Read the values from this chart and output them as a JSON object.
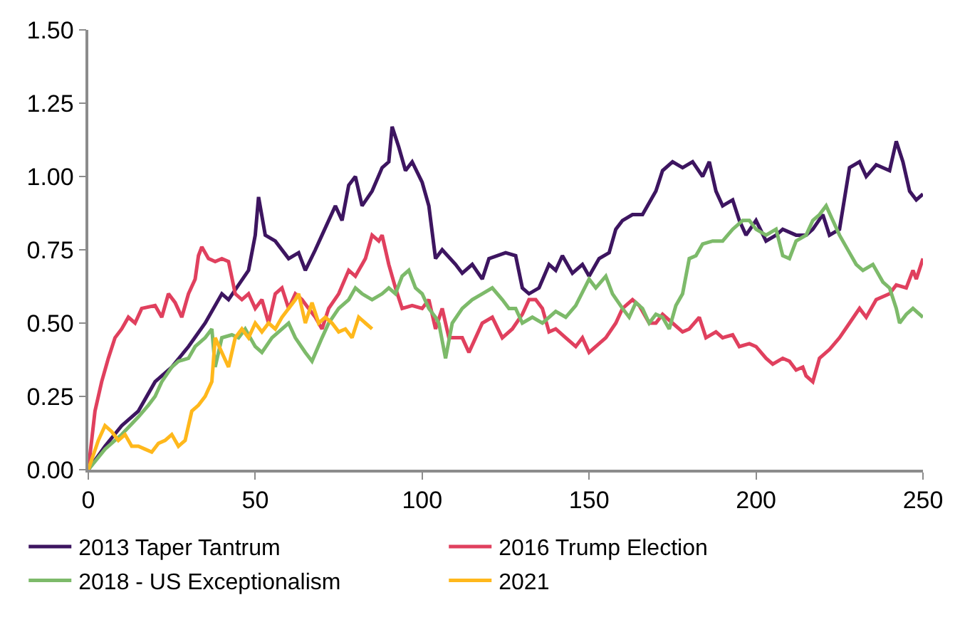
{
  "chart_data": {
    "type": "line",
    "xlim": [
      0,
      250
    ],
    "xticks": [
      0,
      50,
      100,
      150,
      200,
      250
    ],
    "ylim": [
      0,
      1.5
    ],
    "yticks": [
      {
        "value": 0,
        "label": "0.00"
      },
      {
        "value": 0.25,
        "label": "0.25"
      },
      {
        "value": 0.5,
        "label": "0.50"
      },
      {
        "value": 0.75,
        "label": "0.75"
      },
      {
        "value": 1,
        "label": "1.00"
      },
      {
        "value": 1.25,
        "label": "1.25"
      },
      {
        "value": 1.5,
        "label": "1.50"
      }
    ],
    "legend": "bottom",
    "marker": "none",
    "line_style": "solid",
    "series": [
      {
        "name": "2013 Taper Tantrum",
        "color": "#3d1560",
        "x": [
          0,
          5,
          10,
          15,
          20,
          25,
          30,
          35,
          40,
          42,
          45,
          48,
          50,
          51,
          53,
          56,
          60,
          63,
          65,
          68,
          70,
          74,
          76,
          78,
          80,
          82,
          85,
          88,
          90,
          91,
          93,
          95,
          97,
          100,
          102,
          104,
          106,
          110,
          112,
          115,
          118,
          120,
          125,
          128,
          130,
          132,
          135,
          138,
          140,
          142,
          145,
          148,
          150,
          153,
          156,
          158,
          160,
          163,
          166,
          170,
          172,
          175,
          178,
          181,
          184,
          186,
          188,
          190,
          193,
          195,
          197,
          200,
          203,
          206,
          208,
          212,
          215,
          217,
          220,
          222,
          225,
          228,
          231,
          233,
          236,
          240,
          242,
          244,
          246,
          248,
          250
        ],
        "values": [
          0,
          0.08,
          0.15,
          0.2,
          0.3,
          0.35,
          0.42,
          0.5,
          0.6,
          0.58,
          0.63,
          0.68,
          0.8,
          0.93,
          0.8,
          0.78,
          0.72,
          0.74,
          0.68,
          0.75,
          0.8,
          0.9,
          0.85,
          0.97,
          1.0,
          0.9,
          0.95,
          1.03,
          1.05,
          1.17,
          1.1,
          1.02,
          1.05,
          0.98,
          0.9,
          0.72,
          0.75,
          0.7,
          0.67,
          0.7,
          0.65,
          0.72,
          0.74,
          0.73,
          0.62,
          0.6,
          0.62,
          0.7,
          0.68,
          0.73,
          0.67,
          0.7,
          0.66,
          0.72,
          0.74,
          0.82,
          0.85,
          0.87,
          0.87,
          0.95,
          1.02,
          1.05,
          1.03,
          1.05,
          1.0,
          1.05,
          0.95,
          0.9,
          0.92,
          0.85,
          0.8,
          0.85,
          0.78,
          0.8,
          0.82,
          0.8,
          0.8,
          0.82,
          0.87,
          0.8,
          0.82,
          1.03,
          1.05,
          1.0,
          1.04,
          1.02,
          1.12,
          1.05,
          0.95,
          0.92,
          0.94
        ]
      },
      {
        "name": "2016 Trump Election",
        "color": "#e0405e",
        "x": [
          0,
          2,
          4,
          6,
          8,
          10,
          12,
          14,
          16,
          20,
          22,
          24,
          26,
          28,
          30,
          32,
          33,
          34,
          36,
          38,
          40,
          42,
          44,
          46,
          48,
          50,
          52,
          54,
          56,
          58,
          60,
          62,
          64,
          66,
          68,
          70,
          72,
          75,
          78,
          80,
          83,
          85,
          87,
          88,
          90,
          92,
          94,
          97,
          100,
          102,
          104,
          106,
          108,
          112,
          114,
          116,
          118,
          121,
          124,
          127,
          130,
          132,
          134,
          136,
          138,
          140,
          143,
          146,
          148,
          150,
          152,
          155,
          158,
          160,
          163,
          165,
          168,
          170,
          172,
          175,
          178,
          180,
          183,
          185,
          188,
          190,
          193,
          195,
          198,
          200,
          203,
          205,
          208,
          210,
          212,
          214,
          215,
          217,
          219,
          222,
          225,
          228,
          231,
          233,
          236,
          240,
          242,
          245,
          247,
          248,
          250
        ],
        "values": [
          0,
          0.2,
          0.3,
          0.38,
          0.45,
          0.48,
          0.52,
          0.5,
          0.55,
          0.56,
          0.52,
          0.6,
          0.57,
          0.52,
          0.6,
          0.65,
          0.73,
          0.76,
          0.72,
          0.71,
          0.72,
          0.71,
          0.6,
          0.58,
          0.6,
          0.55,
          0.58,
          0.5,
          0.6,
          0.62,
          0.55,
          0.6,
          0.58,
          0.55,
          0.52,
          0.48,
          0.55,
          0.6,
          0.68,
          0.66,
          0.72,
          0.8,
          0.78,
          0.8,
          0.7,
          0.62,
          0.55,
          0.56,
          0.55,
          0.58,
          0.48,
          0.55,
          0.45,
          0.45,
          0.4,
          0.45,
          0.5,
          0.52,
          0.45,
          0.48,
          0.53,
          0.58,
          0.58,
          0.55,
          0.47,
          0.48,
          0.45,
          0.42,
          0.45,
          0.4,
          0.42,
          0.45,
          0.5,
          0.55,
          0.58,
          0.56,
          0.5,
          0.5,
          0.53,
          0.5,
          0.47,
          0.48,
          0.52,
          0.45,
          0.47,
          0.45,
          0.46,
          0.42,
          0.43,
          0.42,
          0.38,
          0.36,
          0.38,
          0.37,
          0.34,
          0.35,
          0.32,
          0.3,
          0.38,
          0.41,
          0.45,
          0.5,
          0.55,
          0.52,
          0.58,
          0.6,
          0.63,
          0.62,
          0.68,
          0.65,
          0.72
        ]
      },
      {
        "name": "2018 - US Exceptionalism",
        "color": "#7dba6a",
        "x": [
          0,
          5,
          10,
          15,
          18,
          20,
          22,
          25,
          27,
          30,
          32,
          35,
          37,
          38,
          40,
          43,
          45,
          47,
          50,
          52,
          55,
          57,
          60,
          62,
          65,
          67,
          70,
          72,
          75,
          78,
          80,
          82,
          85,
          88,
          90,
          92,
          94,
          96,
          98,
          100,
          102,
          104,
          105,
          107,
          109,
          112,
          115,
          118,
          121,
          124,
          126,
          128,
          130,
          133,
          136,
          140,
          143,
          146,
          150,
          152,
          155,
          157,
          160,
          162,
          164,
          166,
          168,
          170,
          172,
          174,
          176,
          178,
          180,
          182,
          184,
          187,
          190,
          193,
          196,
          198,
          200,
          203,
          206,
          208,
          210,
          212,
          215,
          217,
          219,
          221,
          223,
          225,
          228,
          230,
          232,
          235,
          238,
          240,
          242,
          243,
          245,
          247,
          250
        ],
        "values": [
          0,
          0.07,
          0.12,
          0.18,
          0.22,
          0.25,
          0.3,
          0.35,
          0.37,
          0.38,
          0.42,
          0.45,
          0.48,
          0.35,
          0.45,
          0.46,
          0.45,
          0.48,
          0.42,
          0.4,
          0.45,
          0.47,
          0.5,
          0.45,
          0.4,
          0.37,
          0.45,
          0.5,
          0.55,
          0.58,
          0.62,
          0.6,
          0.58,
          0.6,
          0.62,
          0.6,
          0.66,
          0.68,
          0.62,
          0.6,
          0.55,
          0.52,
          0.5,
          0.38,
          0.5,
          0.55,
          0.58,
          0.6,
          0.62,
          0.58,
          0.55,
          0.55,
          0.5,
          0.52,
          0.5,
          0.54,
          0.52,
          0.56,
          0.65,
          0.62,
          0.66,
          0.6,
          0.55,
          0.52,
          0.57,
          0.55,
          0.5,
          0.53,
          0.52,
          0.48,
          0.56,
          0.6,
          0.72,
          0.73,
          0.77,
          0.78,
          0.78,
          0.82,
          0.85,
          0.85,
          0.82,
          0.8,
          0.82,
          0.73,
          0.72,
          0.78,
          0.8,
          0.85,
          0.87,
          0.9,
          0.85,
          0.8,
          0.74,
          0.7,
          0.68,
          0.7,
          0.64,
          0.62,
          0.55,
          0.5,
          0.53,
          0.55,
          0.52
        ]
      },
      {
        "name": "2021",
        "color": "#ffb81c",
        "x": [
          0,
          3,
          5,
          7,
          9,
          11,
          13,
          15,
          17,
          19,
          21,
          23,
          25,
          27,
          29,
          31,
          33,
          35,
          37,
          38,
          40,
          42,
          44,
          46,
          48,
          50,
          52,
          54,
          56,
          58,
          60,
          62,
          63,
          65,
          67,
          69,
          71,
          73,
          75,
          77,
          79,
          81,
          83,
          85
        ],
        "values": [
          0,
          0.1,
          0.15,
          0.13,
          0.1,
          0.12,
          0.08,
          0.08,
          0.07,
          0.06,
          0.09,
          0.1,
          0.12,
          0.08,
          0.1,
          0.2,
          0.22,
          0.25,
          0.3,
          0.45,
          0.4,
          0.35,
          0.45,
          0.48,
          0.45,
          0.5,
          0.47,
          0.5,
          0.48,
          0.52,
          0.55,
          0.58,
          0.6,
          0.5,
          0.57,
          0.5,
          0.52,
          0.5,
          0.47,
          0.48,
          0.45,
          0.52,
          0.5,
          0.48
        ]
      }
    ]
  }
}
